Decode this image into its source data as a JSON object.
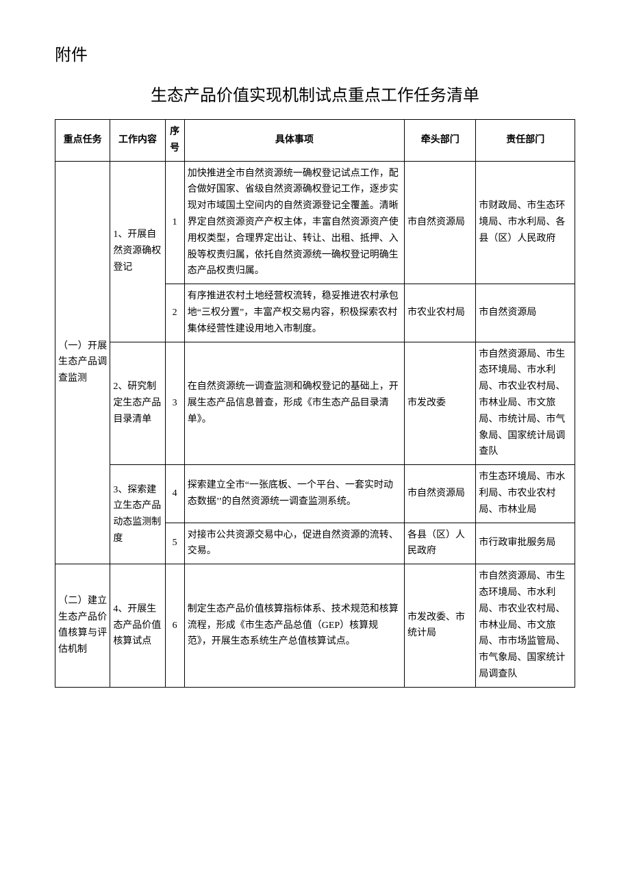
{
  "attachment_label": "附件",
  "title": "生态产品价值实现机制试点重点工作任务清单",
  "table": {
    "columns": [
      "重点任务",
      "工作内容",
      "序号",
      "具体事项",
      "牵头部门",
      "责任部门"
    ],
    "rows": [
      {
        "task": "（一）开展生态产品调查监测",
        "work": "1、开展自然资源确权登记",
        "seq": "1",
        "detail": "加快推进全市自然资源统一确权登记试点工作，配合做好国家、省级自然资源确权登记工作，逐步实现对市域国土空间内的自然资源登记全覆盖。清晰界定自然资源资产产权主体，丰富自然资源资产使用权类型，合理界定出让、转让、出租、抵押、入股等权责归属，依托自然资源统一确权登记明确生态产品权责归属。",
        "lead": "市自然资源局",
        "resp": "市财政局、市生态环境局、市水利局、各县（区）人民政府"
      },
      {
        "task": "",
        "work": "",
        "seq": "2",
        "detail": "有序推进农村土地经营权流转，稳妥推进农村承包地“三权分置”，丰富产权交易内容，积极探索农村集体经营性建设用地入市制度。",
        "lead": "市农业农村局",
        "resp": "市自然资源局"
      },
      {
        "task": "",
        "work": "2、研究制定生态产品目录清单",
        "seq": "3",
        "detail": "在自然资源统一调查监测和确权登记的基础上，开展生态产品信息普查，形成《市生态产品目录清单》。",
        "lead": "市发改委",
        "resp": "市自然资源局、市生态环境局、市水利局、市农业农村局、市林业局、市文旅局、市统计局、市气象局、国家统计局调查队"
      },
      {
        "task": "",
        "work": "3、探索建立生态产品动态监测制度",
        "seq": "4",
        "detail": "探索建立全市“一张底板、一个平台、一套实时动态数据’’的自然资源统一调查监测系统。",
        "lead": "市自然资源局",
        "resp": "市生态环境局、市水利局、市农业农村局、市林业局"
      },
      {
        "task": "",
        "work": "",
        "seq": "5",
        "detail": "对接市公共资源交易中心，促进自然资源的流转、交易。",
        "lead": "各县（区）人民政府",
        "resp": "市行政审批服务局"
      },
      {
        "task": "（二）建立生态产品价值核算与评估机制",
        "work": "4、开展生态产品价值核算试点",
        "seq": "6",
        "detail": "制定生态产品价值核算指标体系、技术规范和核算流程，形成《市生态产品总值（GEP）核算规范》，开展生态系统生产总值核算试点。",
        "lead": "市发改委、市统计局",
        "resp": "市自然资源局、市生态环境局、市水利局、市农业农村局、市林业局、市文旅局、市市场监管局、市气象局、国家统计局调查队"
      }
    ]
  }
}
